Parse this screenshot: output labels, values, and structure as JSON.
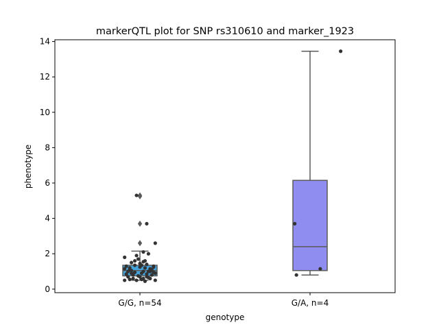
{
  "chart_data": {
    "type": "box",
    "title": "markerQTL plot for SNP rs310610 and marker_1923",
    "xlabel": "genotype",
    "ylabel": "phenotype",
    "ylim": [
      -0.2,
      14.1
    ],
    "yticks": [
      0,
      2,
      4,
      6,
      8,
      10,
      12,
      14
    ],
    "grid": false,
    "categories": [
      "G/G, n=54",
      "G/A, n=4"
    ],
    "boxes": [
      {
        "category": "G/G, n=54",
        "color": "#45a3dc",
        "q1": 0.75,
        "median": 1.05,
        "q3": 1.35,
        "whisker_low": 0.5,
        "whisker_high": 2.15,
        "outliers": [
          2.6,
          3.7,
          5.25,
          5.3
        ],
        "points": [
          {
            "x": -0.09,
            "y": 1.8
          },
          {
            "x": -0.05,
            "y": 1.5
          },
          {
            "x": -0.02,
            "y": 1.9
          },
          {
            "x": 0.03,
            "y": 1.6
          },
          {
            "x": -0.08,
            "y": 1.3
          },
          {
            "x": -0.06,
            "y": 1.1
          },
          {
            "x": -0.03,
            "y": 0.95
          },
          {
            "x": 0.0,
            "y": 1.25
          },
          {
            "x": 0.02,
            "y": 1.0
          },
          {
            "x": 0.04,
            "y": 0.85
          },
          {
            "x": 0.06,
            "y": 1.15
          },
          {
            "x": 0.08,
            "y": 1.3
          },
          {
            "x": 0.09,
            "y": 0.9
          },
          {
            "x": -0.07,
            "y": 0.7
          },
          {
            "x": -0.04,
            "y": 0.6
          },
          {
            "x": -0.01,
            "y": 0.75
          },
          {
            "x": 0.01,
            "y": 0.55
          },
          {
            "x": 0.05,
            "y": 0.65
          },
          {
            "x": 0.07,
            "y": 0.8
          },
          {
            "x": -0.09,
            "y": 0.5
          },
          {
            "x": -0.02,
            "y": 0.5
          },
          {
            "x": 0.03,
            "y": 0.45
          },
          {
            "x": 0.09,
            "y": 0.5
          },
          {
            "x": -0.05,
            "y": 1.05
          },
          {
            "x": 0.0,
            "y": 1.45
          },
          {
            "x": 0.02,
            "y": 1.55
          },
          {
            "x": 0.04,
            "y": 1.4
          },
          {
            "x": -0.06,
            "y": 1.2
          },
          {
            "x": 0.06,
            "y": 1.0
          },
          {
            "x": 0.08,
            "y": 0.95
          },
          {
            "x": -0.03,
            "y": 1.35
          },
          {
            "x": 0.01,
            "y": 0.9
          },
          {
            "x": -0.08,
            "y": 0.85
          },
          {
            "x": 0.05,
            "y": 2.0
          },
          {
            "x": 0.02,
            "y": 2.1
          },
          {
            "x": 0.09,
            "y": 2.6
          },
          {
            "x": 0.04,
            "y": 3.7
          },
          {
            "x": -0.02,
            "y": 5.3
          },
          {
            "x": -0.01,
            "y": 1.7
          },
          {
            "x": 0.03,
            "y": 1.2
          },
          {
            "x": -0.04,
            "y": 0.8
          },
          {
            "x": 0.07,
            "y": 1.1
          },
          {
            "x": -0.07,
            "y": 1.0
          },
          {
            "x": 0.0,
            "y": 0.7
          },
          {
            "x": 0.06,
            "y": 0.6
          },
          {
            "x": -0.06,
            "y": 0.55
          },
          {
            "x": 0.08,
            "y": 1.25
          },
          {
            "x": -0.09,
            "y": 1.15
          },
          {
            "x": 0.01,
            "y": 1.35
          },
          {
            "x": -0.05,
            "y": 0.9
          },
          {
            "x": 0.04,
            "y": 0.7
          },
          {
            "x": -0.03,
            "y": 1.6
          },
          {
            "x": 0.02,
            "y": 0.6
          },
          {
            "x": 0.05,
            "y": 1.0
          }
        ]
      },
      {
        "category": "G/A, n=4",
        "color": "#8f8ef0",
        "q1": 1.05,
        "median": 2.4,
        "q3": 6.15,
        "whisker_low": 0.8,
        "whisker_high": 13.45,
        "outliers": [],
        "points": [
          {
            "x": 0.18,
            "y": 13.45
          },
          {
            "x": 0.06,
            "y": 1.15
          },
          {
            "x": -0.08,
            "y": 0.8
          },
          {
            "x": -0.09,
            "y": 3.7
          }
        ]
      }
    ]
  }
}
